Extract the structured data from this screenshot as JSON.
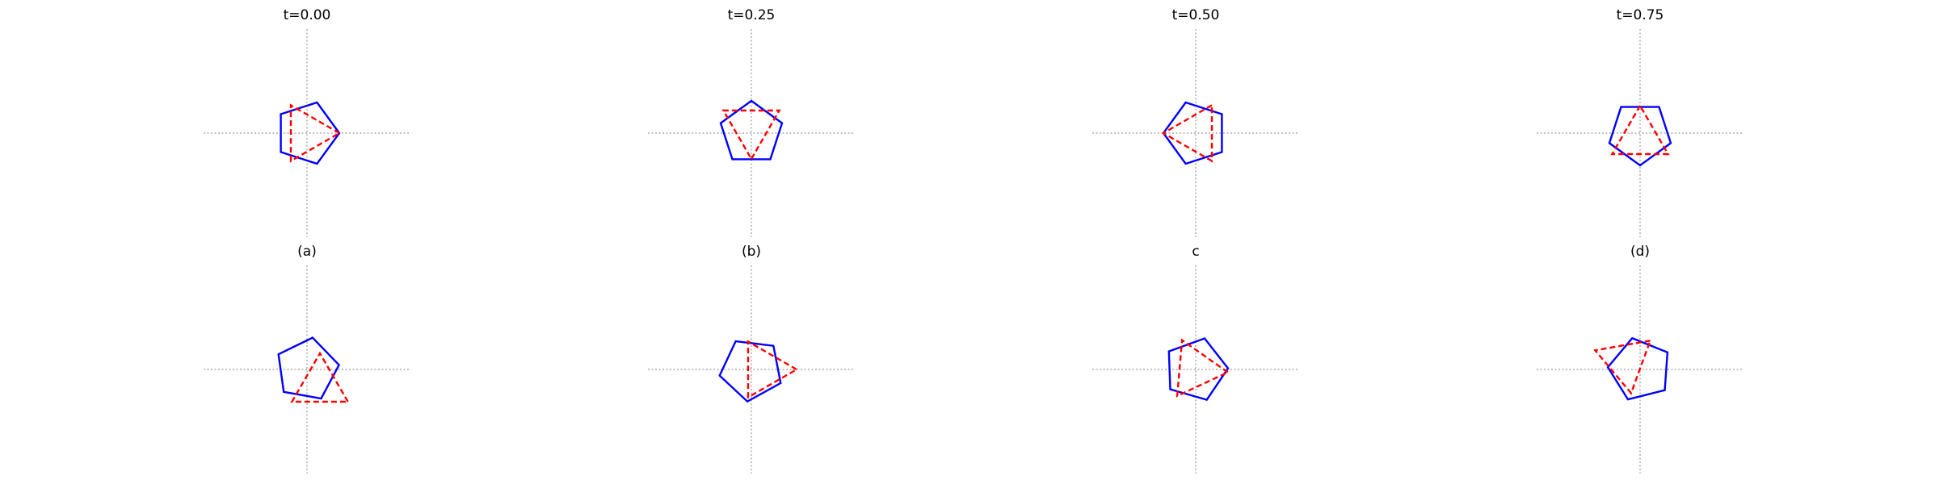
{
  "figure": {
    "colors": {
      "pentagon": "#0000ff",
      "triangle": "#ff0000",
      "axes": "#9a9a9a"
    },
    "panels": [
      {
        "title": "t=0.00",
        "pentagon": {
          "cx": 0.0,
          "cy": 0.0,
          "r": 1.0,
          "rot_deg": 0
        },
        "triangle": {
          "cx": 0.0,
          "cy": 0.0,
          "r": 1.0,
          "rot_deg": 0
        }
      },
      {
        "title": "t=0.25",
        "pentagon": {
          "cx": 0.0,
          "cy": 0.0,
          "r": 1.0,
          "rot_deg": 18
        },
        "triangle": {
          "cx": 0.0,
          "cy": 0.2,
          "r": 1.0,
          "rot_deg": -90
        }
      },
      {
        "title": "t=0.50",
        "pentagon": {
          "cx": 0.0,
          "cy": 0.0,
          "r": 1.0,
          "rot_deg": 36
        },
        "triangle": {
          "cx": 0.0,
          "cy": 0.0,
          "r": 1.0,
          "rot_deg": 60
        }
      },
      {
        "title": "t=0.75",
        "pentagon": {
          "cx": 0.0,
          "cy": 0.0,
          "r": 1.0,
          "rot_deg": 54
        },
        "triangle": {
          "cx": 0.0,
          "cy": -0.15,
          "r": 1.0,
          "rot_deg": 90
        }
      },
      {
        "title": "(a)",
        "pentagon": {
          "cx": 0.0,
          "cy": 0.0,
          "r": 1.0,
          "rot_deg": 8
        },
        "triangle": {
          "cx": 0.4,
          "cy": -0.5,
          "r": 1.0,
          "rot_deg": -30
        }
      },
      {
        "title": "(b)",
        "pentagon": {
          "cx": 0.0,
          "cy": 0.0,
          "r": 1.0,
          "rot_deg": -25
        },
        "triangle": {
          "cx": 0.4,
          "cy": 0.0,
          "r": 1.0,
          "rot_deg": 0
        }
      },
      {
        "title": "c",
        "pentagon": {
          "cx": 0.0,
          "cy": 0.0,
          "r": 1.0,
          "rot_deg": 2
        },
        "triangle": {
          "cx": 0.0,
          "cy": 0.0,
          "r": 1.0,
          "rot_deg": -5
        }
      },
      {
        "title": "(d)",
        "pentagon": {
          "cx": 0.0,
          "cy": 0.0,
          "r": 1.0,
          "rot_deg": -40
        },
        "triangle": {
          "cx": -0.45,
          "cy": 0.25,
          "r": 1.0,
          "rot_deg": 40
        }
      }
    ]
  }
}
